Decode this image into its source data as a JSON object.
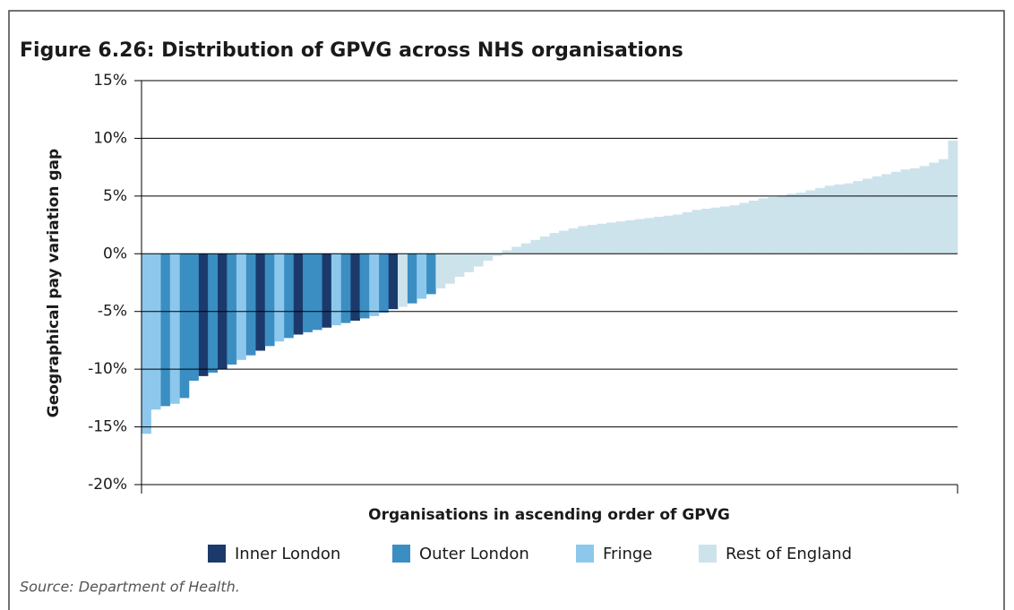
{
  "chart_data": {
    "type": "bar",
    "title": "Figure 6.26: Distribution of GPVG across NHS organisations",
    "ylabel": "Geographical pay variation gap",
    "xlabel": "Organisations in ascending order of GPVG",
    "source": "Source: Department of Health.",
    "ylim": [
      -20,
      15
    ],
    "yticks": [
      {
        "value": -20,
        "label": "-20%"
      },
      {
        "value": -15,
        "label": "-15%"
      },
      {
        "value": -10,
        "label": "-10%"
      },
      {
        "value": -5,
        "label": "-5%"
      },
      {
        "value": 0,
        "label": "0%"
      },
      {
        "value": 5,
        "label": "5%"
      },
      {
        "value": 10,
        "label": "10%"
      },
      {
        "value": 15,
        "label": "15%"
      }
    ],
    "grid": true,
    "series": [
      {
        "name": "Inner London",
        "color": "#1b3a6b",
        "values": [
          null,
          null,
          null,
          null,
          null,
          null,
          -10.6,
          null,
          -10.0,
          null,
          null,
          null,
          -8.4,
          null,
          null,
          null,
          -7.0,
          null,
          null,
          -6.4,
          null,
          null,
          -5.8,
          null,
          null,
          null,
          -4.8,
          null,
          null,
          null,
          null,
          null,
          null,
          null,
          null,
          null,
          null,
          null,
          null,
          null,
          null,
          null,
          null,
          null,
          null,
          null,
          null,
          null,
          null,
          null,
          null,
          null,
          null,
          null,
          null,
          null,
          null,
          null,
          null,
          null,
          null,
          null,
          null,
          null,
          null,
          null,
          null,
          null,
          null,
          null,
          null,
          null,
          null,
          null,
          null,
          null,
          null,
          null,
          null,
          null,
          null,
          null,
          null,
          null,
          null,
          null
        ]
      },
      {
        "name": "Outer London",
        "color": "#3b8ec2",
        "values": [
          null,
          null,
          -13.2,
          null,
          -12.5,
          -11.0,
          null,
          -10.3,
          null,
          -9.6,
          null,
          -8.8,
          null,
          -8.0,
          null,
          -7.3,
          null,
          -6.8,
          -6.6,
          null,
          null,
          -6.0,
          null,
          -5.6,
          null,
          -5.1,
          null,
          null,
          -4.3,
          null,
          -3.5,
          null,
          null,
          null,
          null,
          null,
          null,
          null,
          null,
          null,
          null,
          null,
          null,
          null,
          null,
          null,
          null,
          null,
          null,
          null,
          null,
          null,
          null,
          null,
          null,
          null,
          null,
          null,
          null,
          null,
          null,
          null,
          null,
          null,
          null,
          null,
          null,
          null,
          null,
          null,
          null,
          null,
          null,
          null,
          null,
          null,
          null,
          null,
          null,
          null,
          null,
          null,
          null,
          null,
          null,
          null
        ]
      },
      {
        "name": "Fringe",
        "color": "#8dc8ec",
        "values": [
          -15.6,
          -13.5,
          null,
          -13.0,
          null,
          null,
          null,
          null,
          null,
          null,
          -9.2,
          null,
          null,
          null,
          -7.6,
          null,
          null,
          null,
          null,
          null,
          -6.2,
          null,
          null,
          null,
          -5.4,
          null,
          null,
          null,
          null,
          -3.9,
          null,
          null,
          null,
          null,
          null,
          null,
          null,
          null,
          null,
          null,
          null,
          null,
          null,
          null,
          null,
          null,
          null,
          null,
          null,
          null,
          null,
          null,
          null,
          null,
          null,
          null,
          null,
          null,
          null,
          null,
          null,
          null,
          null,
          null,
          null,
          null,
          null,
          null,
          null,
          null,
          null,
          null,
          null,
          null,
          null,
          null,
          null,
          null,
          null,
          null,
          null,
          null,
          null,
          null,
          null,
          null
        ]
      },
      {
        "name": "Rest of England",
        "color": "#cde3ec",
        "values": [
          null,
          null,
          null,
          null,
          null,
          null,
          null,
          null,
          null,
          null,
          null,
          null,
          null,
          null,
          null,
          null,
          null,
          null,
          null,
          null,
          null,
          null,
          null,
          null,
          null,
          null,
          null,
          -4.6,
          null,
          null,
          null,
          -3.0,
          -2.6,
          -2.0,
          -1.6,
          -1.1,
          -0.6,
          -0.2,
          0.3,
          0.6,
          0.9,
          1.2,
          1.5,
          1.8,
          2.0,
          2.2,
          2.4,
          2.5,
          2.6,
          2.7,
          2.8,
          2.9,
          3.0,
          3.1,
          3.2,
          3.3,
          3.4,
          3.6,
          3.8,
          3.9,
          4.0,
          4.1,
          4.2,
          4.4,
          4.6,
          4.8,
          4.9,
          5.0,
          5.2,
          5.3,
          5.5,
          5.7,
          5.9,
          6.0,
          6.1,
          6.3,
          6.5,
          6.7,
          6.9,
          7.1,
          7.3,
          7.4,
          7.6,
          7.9,
          8.2,
          9.8
        ]
      }
    ]
  }
}
